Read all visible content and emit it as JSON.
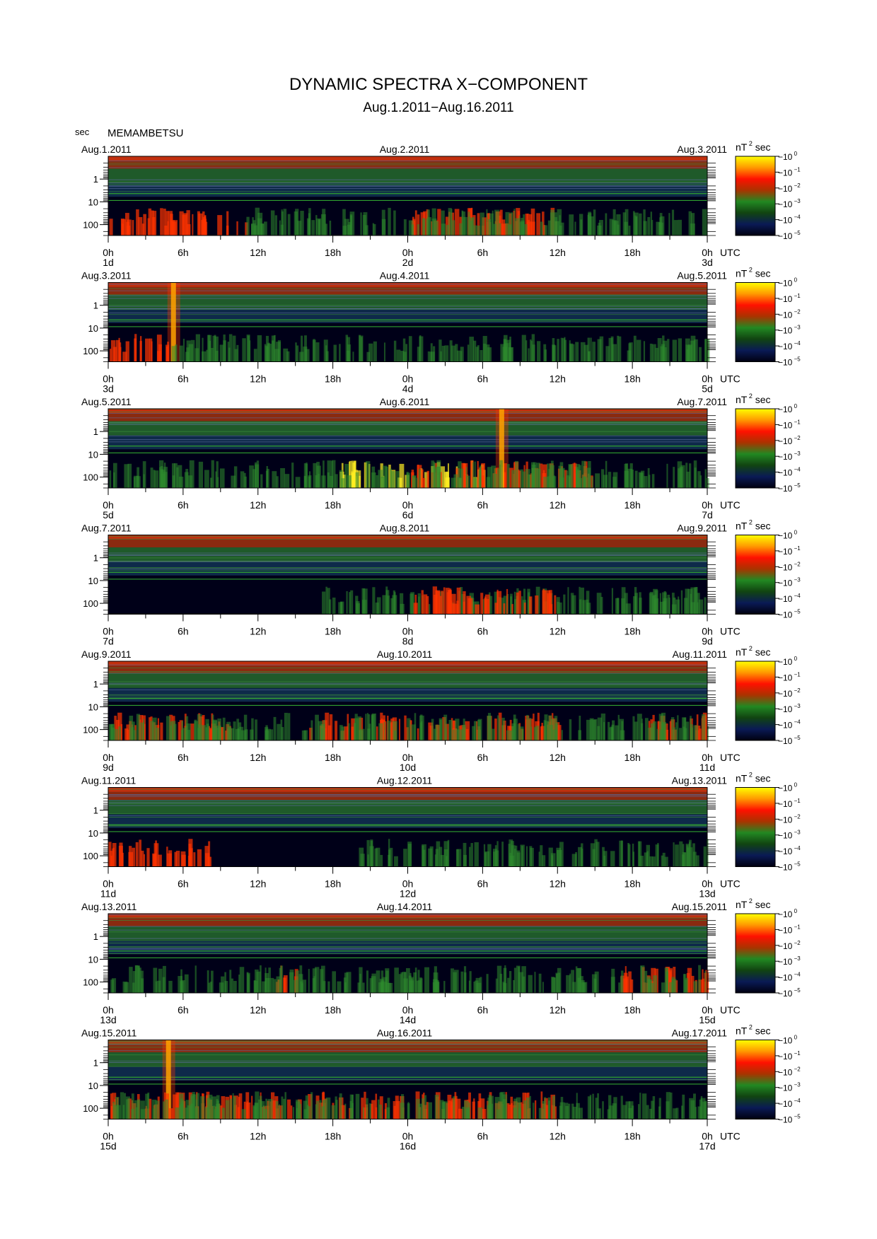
{
  "title": "DYNAMIC SPECTRA X−COMPONENT",
  "subtitle": "Aug.1.2011−Aug.16.2011",
  "station": "MEMAMBETSU",
  "yunit": "sec",
  "xunit": "UTC",
  "colorbar": {
    "unit_base": "nT",
    "unit_exp": "2",
    "unit_tail": "sec",
    "tick_base": "−10",
    "exponents": [
      "0",
      "−1",
      "−2",
      "−3",
      "−4",
      "−5"
    ],
    "colors": [
      "#ffff00",
      "#ff9900",
      "#ff1100",
      "#aa3300",
      "#228822",
      "#114411",
      "#0a1a55",
      "#000010"
    ]
  },
  "chart_data": {
    "type": "heatmap",
    "ylabel": "sec",
    "yscale": "log",
    "ylim": [
      0.1,
      300
    ],
    "yticks": [
      "1",
      "10",
      "100"
    ],
    "xticks": [
      "0h",
      "6h",
      "12h",
      "18h",
      "0h",
      "6h",
      "12h",
      "18h",
      "0h"
    ],
    "zunit": "nT^2 sec",
    "zscale": "log",
    "zlim": [
      1e-05,
      1
    ],
    "panels": [
      {
        "left_date": "Aug.1.2011",
        "mid_date": "Aug.2.2011",
        "right_date": "Aug.3.2011",
        "day_labels": [
          "1d",
          "2d",
          "3d"
        ],
        "features": [
          {
            "type": "activity",
            "hours": [
              0,
              11
            ],
            "level": "red"
          },
          {
            "type": "activity",
            "hours": [
              24,
              36
            ],
            "level": "red"
          },
          {
            "type": "activity",
            "hours": [
              11,
              48
            ],
            "level": "green"
          }
        ]
      },
      {
        "left_date": "Aug.3.2011",
        "mid_date": "Aug.4.2011",
        "right_date": "Aug.5.2011",
        "day_labels": [
          "3d",
          "4d",
          "5d"
        ],
        "features": [
          {
            "type": "spike",
            "hour": 5.2,
            "level": "yellow"
          },
          {
            "type": "activity",
            "hours": [
              0,
              5
            ],
            "level": "red"
          },
          {
            "type": "activity",
            "hours": [
              5,
              48
            ],
            "level": "green"
          }
        ]
      },
      {
        "left_date": "Aug.5.2011",
        "mid_date": "Aug.6.2011",
        "right_date": "Aug.7.2011",
        "day_labels": [
          "5d",
          "6d",
          "7d"
        ],
        "features": [
          {
            "type": "activity",
            "hours": [
              18,
              30
            ],
            "level": "yellow"
          },
          {
            "type": "activity",
            "hours": [
              24,
              39
            ],
            "level": "red"
          },
          {
            "type": "spike",
            "hour": 31.5,
            "level": "yellow"
          },
          {
            "type": "activity",
            "hours": [
              0,
              48
            ],
            "level": "green"
          }
        ]
      },
      {
        "left_date": "Aug.7.2011",
        "mid_date": "Aug.8.2011",
        "right_date": "Aug.9.2011",
        "day_labels": [
          "7d",
          "8d",
          "9d"
        ],
        "features": [
          {
            "type": "activity",
            "hours": [
              17,
              48
            ],
            "level": "green"
          },
          {
            "type": "activity",
            "hours": [
              24,
              36
            ],
            "level": "red"
          }
        ]
      },
      {
        "left_date": "Aug.9.2011",
        "mid_date": "Aug.10.2011",
        "right_date": "Aug.11.2011",
        "day_labels": [
          "9d",
          "10d",
          "11d"
        ],
        "features": [
          {
            "type": "activity",
            "hours": [
              0,
              10
            ],
            "level": "red"
          },
          {
            "type": "activity",
            "hours": [
              16,
              36
            ],
            "level": "red"
          },
          {
            "type": "activity",
            "hours": [
              43,
              48
            ],
            "level": "red"
          },
          {
            "type": "activity",
            "hours": [
              0,
              48
            ],
            "level": "green"
          }
        ]
      },
      {
        "left_date": "Aug.11.2011",
        "mid_date": "Aug.12.2011",
        "right_date": "Aug.13.2011",
        "day_labels": [
          "11d",
          "12d",
          "13d"
        ],
        "features": [
          {
            "type": "activity",
            "hours": [
              0,
              9
            ],
            "level": "red"
          },
          {
            "type": "activity",
            "hours": [
              20,
              48
            ],
            "level": "green"
          }
        ]
      },
      {
        "left_date": "Aug.13.2011",
        "mid_date": "Aug.14.2011",
        "right_date": "Aug.15.2011",
        "day_labels": [
          "13d",
          "14d",
          "15d"
        ],
        "features": [
          {
            "type": "activity",
            "hours": [
              13,
              15
            ],
            "level": "red"
          },
          {
            "type": "activity",
            "hours": [
              41,
              48
            ],
            "level": "red"
          },
          {
            "type": "activity",
            "hours": [
              0,
              48
            ],
            "level": "green"
          }
        ]
      },
      {
        "left_date": "Aug.15.2011",
        "mid_date": "Aug.16.2011",
        "right_date": "Aug.17.2011",
        "day_labels": [
          "15d",
          "16d",
          "17d"
        ],
        "features": [
          {
            "type": "spike",
            "hour": 4.8,
            "level": "yellow"
          },
          {
            "type": "activity",
            "hours": [
              0,
              36
            ],
            "level": "red"
          },
          {
            "type": "activity",
            "hours": [
              0,
              48
            ],
            "level": "green"
          }
        ]
      }
    ]
  }
}
